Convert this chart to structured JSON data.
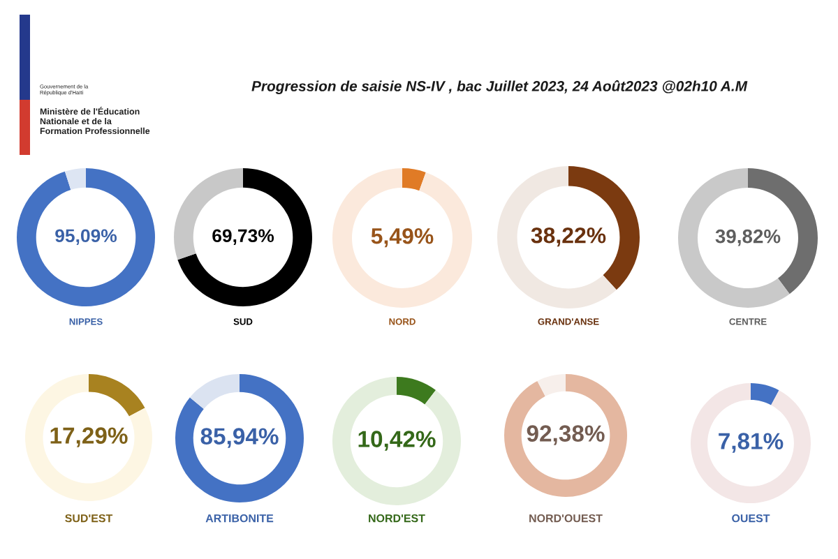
{
  "chart_data": [
    {
      "type": "other",
      "title": "Progression de saisie NS-IV , bac Juillet 2023, 24 Août2023 @02h10 A.M",
      "annotations": [
        "Gouvernement de la\nRépublique d'Haïti",
        "Ministère de l'Éducation\nNationale et de la\nFormation Professionnelle"
      ]
    },
    {
      "type": "donut",
      "title": "NIPPES",
      "categories": [
        null,
        null
      ],
      "values": [
        95.09,
        4.91
      ],
      "colors": [
        "#4472c4",
        "#dde5f3"
      ],
      "annotations": [
        "95,09%"
      ]
    },
    {
      "type": "donut",
      "title": "SUD",
      "categories": [
        null,
        null
      ],
      "values": [
        69.73,
        30.27
      ],
      "colors": [
        "#000000",
        "#c8c8c8"
      ],
      "annotations": [
        "69,73%"
      ]
    },
    {
      "type": "donut",
      "title": "NORD",
      "categories": [
        null,
        null
      ],
      "values": [
        5.49,
        94.51
      ],
      "colors": [
        "#e07b26",
        "#fbe9dc"
      ],
      "annotations": [
        "5,49%"
      ]
    },
    {
      "type": "donut",
      "title": "GRAND'ANSE",
      "categories": [
        null,
        null
      ],
      "values": [
        38.22,
        61.78
      ],
      "colors": [
        "#7b3a10",
        "#f0e8e2"
      ],
      "annotations": [
        "38,22%"
      ]
    },
    {
      "type": "donut",
      "title": "CENTRE",
      "categories": [
        null,
        null
      ],
      "values": [
        39.82,
        60.18
      ],
      "colors": [
        "#6e6e6e",
        "#c9c9c9"
      ],
      "annotations": [
        "39,82%"
      ]
    },
    {
      "type": "donut",
      "title": "SUD'EST",
      "categories": [
        null,
        null
      ],
      "values": [
        17.29,
        82.71
      ],
      "colors": [
        "#a88220",
        "#fdf6e3"
      ],
      "annotations": [
        "17,29%"
      ]
    },
    {
      "type": "donut",
      "title": "ARTIBONITE",
      "categories": [
        null,
        null
      ],
      "values": [
        85.94,
        14.06
      ],
      "colors": [
        "#4472c4",
        "#dbe3f1"
      ],
      "annotations": [
        "85,94%"
      ]
    },
    {
      "type": "donut",
      "title": "NORD'EST",
      "categories": [
        null,
        null
      ],
      "values": [
        10.42,
        89.58
      ],
      "colors": [
        "#3d7a1e",
        "#e3eedc"
      ],
      "annotations": [
        "10,42%"
      ]
    },
    {
      "type": "donut",
      "title": "NORD'OUEST",
      "categories": [
        null,
        null
      ],
      "values": [
        92.38,
        7.62
      ],
      "colors": [
        "#e4b7a0",
        "#f7efeb"
      ],
      "annotations": [
        "92,38%"
      ]
    },
    {
      "type": "donut",
      "title": "OUEST",
      "categories": [
        null,
        null
      ],
      "values": [
        7.81,
        92.19
      ],
      "colors": [
        "#4472c4",
        "#f3e6e6"
      ],
      "annotations": [
        "7,81%"
      ]
    }
  ]
}
